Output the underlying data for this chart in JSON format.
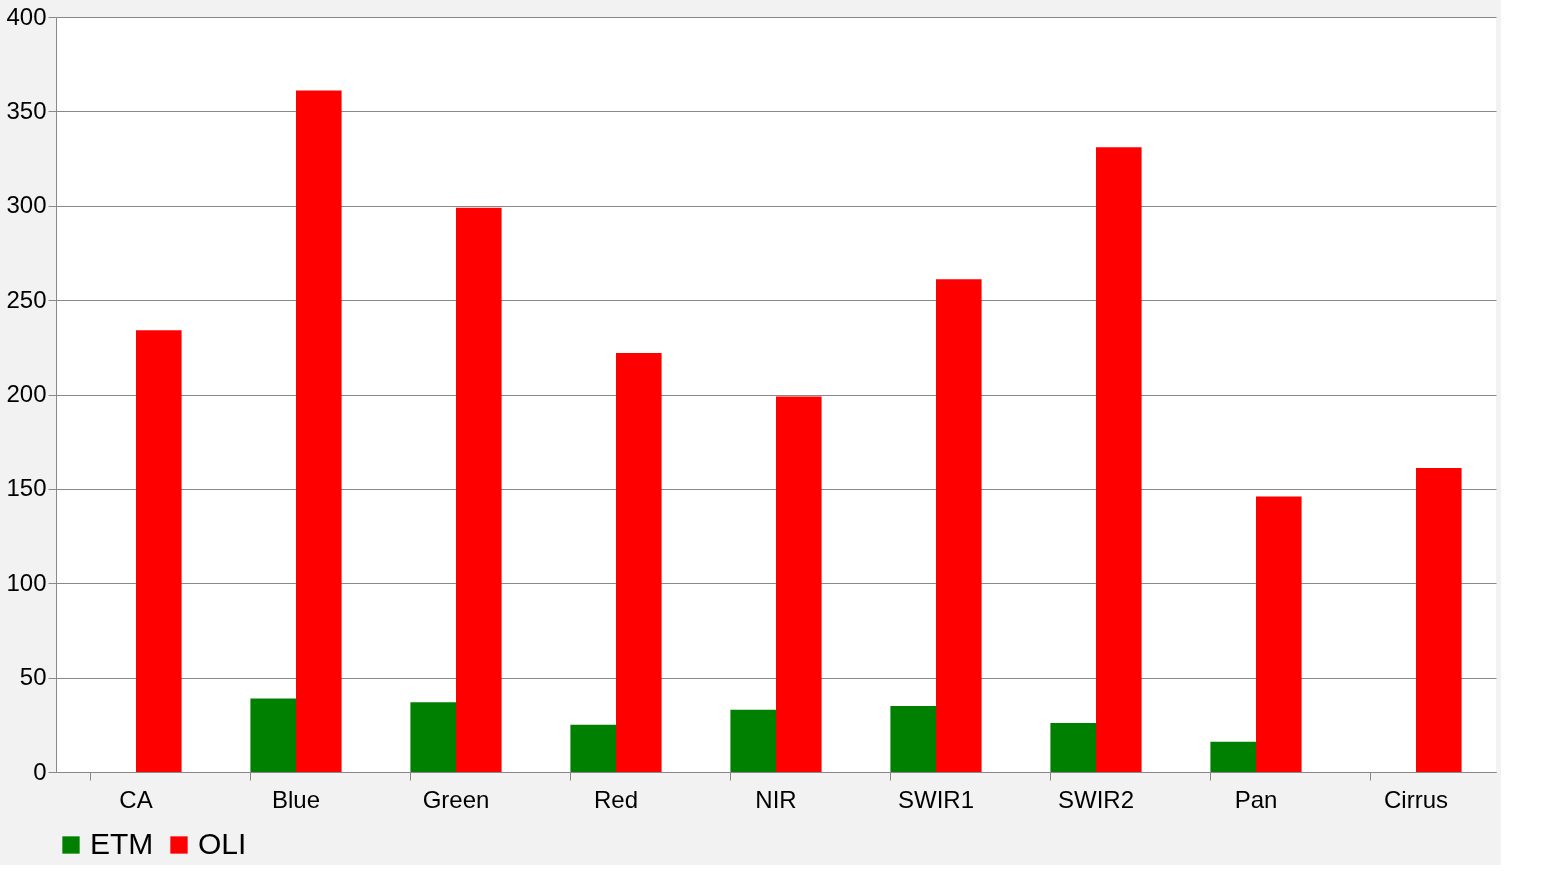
{
  "chart_data": {
    "type": "bar",
    "categories": [
      "CA",
      "Blue",
      "Green",
      "Red",
      "NIR",
      "SWIR1",
      "SWIR2",
      "Pan",
      "Cirrus"
    ],
    "series": [
      {
        "name": "ETM",
        "color": "#008000",
        "values": [
          null,
          39,
          37,
          25,
          33,
          35,
          26,
          16,
          null
        ]
      },
      {
        "name": "OLI",
        "color": "#ff0000",
        "values": [
          234,
          361,
          299,
          222,
          199,
          261,
          331,
          146,
          161
        ]
      }
    ],
    "ylim": [
      0,
      400
    ],
    "yticks": [
      0,
      50,
      100,
      150,
      200,
      250,
      300,
      350,
      400
    ],
    "grid": "y",
    "legend": "bottom"
  }
}
